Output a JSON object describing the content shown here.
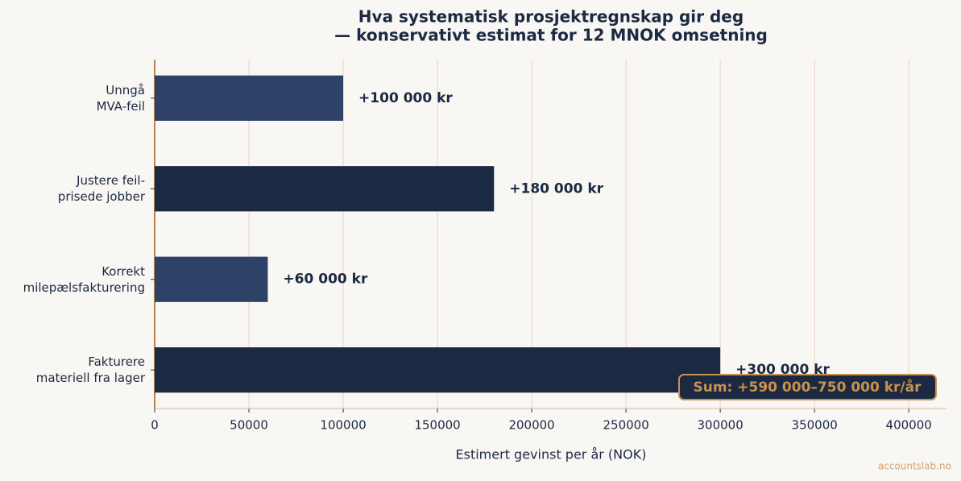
{
  "chart_data": {
    "type": "hbar",
    "title": "Hva systematisk prosjektregnskap gir deg",
    "subtitle": "— konservativt estimat for 12 MNOK omsetning",
    "x_label": "Estimert gevinst per år (NOK)",
    "categories": [
      "Unngå\nMVA-feil",
      "Justere feil-\nprisede jobber",
      "Korrekt\nmilepælsfakturering",
      "Fakturere\nmateriell fra lager"
    ],
    "values": [
      100000,
      180000,
      60000,
      300000
    ],
    "value_labels": [
      "+100 000 kr",
      "+180 000 kr",
      "+60 000 kr",
      "+300 000 kr"
    ],
    "colors": [
      "#2e4166",
      "#1b2a42",
      "#2e4166",
      "#1b2a42"
    ],
    "xlim": [
      0,
      420000
    ],
    "xticks": [
      0,
      50000,
      100000,
      150000,
      200000,
      250000,
      300000,
      350000,
      400000
    ],
    "grid": true,
    "annotation": "Sum: +590 000–750 000 kr/år",
    "watermark": "accountslab.no"
  }
}
